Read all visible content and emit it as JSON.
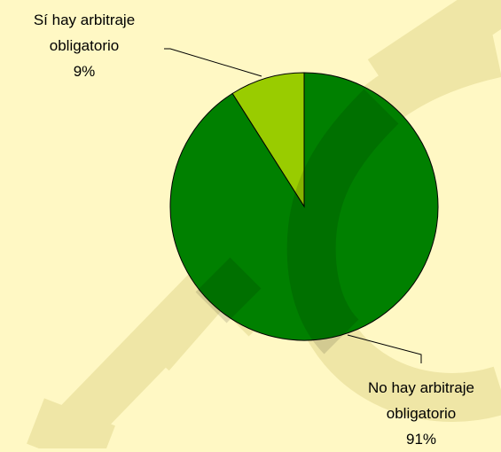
{
  "chart_data": {
    "type": "pie",
    "categories": [
      "Sí hay arbitraje obligatorio",
      "No hay arbitraje obligatorio"
    ],
    "values": [
      9,
      91
    ],
    "value_labels": [
      "9%",
      "91%"
    ],
    "colors": [
      "#99cc00",
      "#008000"
    ]
  }
}
